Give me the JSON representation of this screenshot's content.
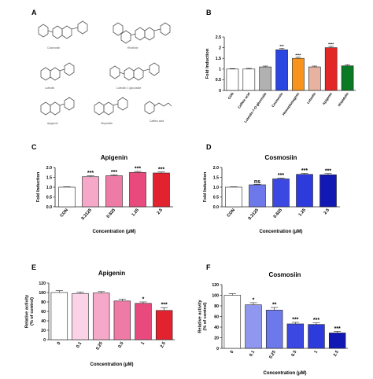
{
  "panels": {
    "A": "A",
    "B": "B",
    "C": "C",
    "D": "D",
    "E": "E",
    "F": "F"
  },
  "structures": [
    {
      "name": "Cosmosiin"
    },
    {
      "name": "Rhoifolin"
    },
    {
      "name": "Luteolin-7-glucoside"
    },
    {
      "name": "Luteolin"
    },
    {
      "name": "Apigenin"
    },
    {
      "name": "Hispidulin"
    },
    {
      "name": "Caffeic acid"
    }
  ],
  "colors": {
    "pink_ramp": [
      "#ffffff",
      "#fbd3e6",
      "#f6a8c8",
      "#ee7aa6",
      "#e84a7d",
      "#e2222f"
    ],
    "blue_ramp": [
      "#ffffff",
      "#8f97ef",
      "#6d78ea",
      "#3b48e2",
      "#2d3bdc",
      "#1118b3"
    ],
    "panel_b": [
      "#ffffff",
      "#ffffff",
      "#b1b1b1",
      "#2b46e0",
      "#f7941d",
      "#e8b2a0",
      "#e32727",
      "#0b7a24"
    ]
  },
  "chart_data": [
    {
      "panel": "B",
      "type": "bar",
      "title": "",
      "xlabel": "",
      "ylabel": "Fold Induction",
      "ylim": [
        0,
        2.5
      ],
      "yticks": [
        "0",
        "0.5",
        "1",
        "1.5",
        "2",
        "2.5"
      ],
      "categories": [
        "CON",
        "Caffeic acid",
        "Luteolin-7-O-glucoside",
        "Cosmosiin",
        "Homoplantaginin",
        "Luteolin",
        "Apigenin",
        "Hispidulin"
      ],
      "values": [
        1.0,
        1.0,
        1.1,
        1.9,
        1.5,
        1.1,
        2.0,
        1.15
      ],
      "errors": [
        0.02,
        0.03,
        0.04,
        0.06,
        0.05,
        0.04,
        0.06,
        0.05
      ],
      "significance": [
        "",
        "",
        "",
        "***",
        "****",
        "",
        "****",
        ""
      ]
    },
    {
      "panel": "C",
      "type": "bar",
      "title": "Apigenin",
      "xlabel": "Concentration (μM)",
      "ylabel": "Fold Induction",
      "ylim": [
        0,
        2.0
      ],
      "yticks": [
        "0.0",
        "0.5",
        "1.0",
        "1.5",
        "2.0"
      ],
      "categories": [
        "CON",
        "0.3125",
        "0.625",
        "1.25",
        "2.5"
      ],
      "values": [
        1.0,
        1.53,
        1.58,
        1.75,
        1.72
      ],
      "errors": [
        0.02,
        0.05,
        0.05,
        0.05,
        0.05
      ],
      "significance": [
        "",
        "***",
        "***",
        "***",
        "***"
      ]
    },
    {
      "panel": "D",
      "type": "bar",
      "title": "Cosmosiin",
      "xlabel": "Concentration (μM)",
      "ylabel": "Fold Induction",
      "ylim": [
        0,
        2.0
      ],
      "yticks": [
        "0.0",
        "0.5",
        "1.0",
        "1.5",
        "2.0"
      ],
      "categories": [
        "CON",
        "0.3125",
        "0.625",
        "1.25",
        "2.5"
      ],
      "values": [
        1.0,
        1.12,
        1.42,
        1.65,
        1.63
      ],
      "errors": [
        0.02,
        0.03,
        0.04,
        0.05,
        0.06
      ],
      "significance": [
        "",
        "ns",
        "***",
        "***",
        "***"
      ]
    },
    {
      "panel": "E",
      "type": "bar",
      "title": "Apigenin",
      "xlabel": "Concentration (μM)",
      "ylabel": "Relative activity\n(% of control)",
      "ylim": [
        0,
        120
      ],
      "yticks": [
        "0",
        "20",
        "40",
        "60",
        "80",
        "100",
        "120"
      ],
      "categories": [
        "0",
        "0.1",
        "0.25",
        "0.5",
        "1",
        "2.5"
      ],
      "values": [
        100,
        98,
        99,
        82,
        77,
        62
      ],
      "errors": [
        4,
        3,
        3,
        4,
        3,
        6
      ],
      "significance": [
        "",
        "",
        "",
        "",
        "*",
        "***"
      ]
    },
    {
      "panel": "F",
      "type": "bar",
      "title": "Cosmosiin",
      "xlabel": "Concentration (μM)",
      "ylabel": "Relative activity\n(% of control)",
      "ylim": [
        0,
        120
      ],
      "yticks": [
        "0",
        "20",
        "40",
        "60",
        "80",
        "100",
        "120"
      ],
      "categories": [
        "0",
        "0.1",
        "0.25",
        "0.5",
        "1",
        "2.5"
      ],
      "values": [
        100,
        82,
        72,
        46,
        45,
        29
      ],
      "errors": [
        3,
        4,
        5,
        3,
        3,
        3
      ],
      "significance": [
        "",
        "*",
        "**",
        "***",
        "***",
        "***"
      ]
    }
  ]
}
